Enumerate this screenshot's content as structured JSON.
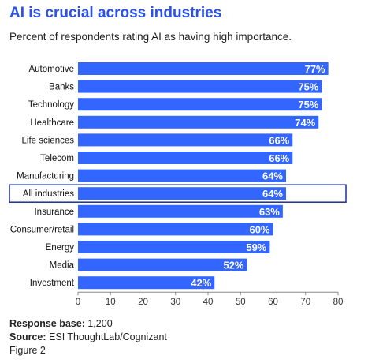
{
  "title": "AI is crucial across industries",
  "subtitle": "Percent of respondents rating AI as having high importance.",
  "colors": {
    "bar": "#3366ff",
    "title": "#2a52e8",
    "highlight_border": "#1a2e99",
    "axis": "#888888"
  },
  "chart_data": {
    "type": "bar",
    "orientation": "horizontal",
    "categories": [
      "Automotive",
      "Banks",
      "Technology",
      "Healthcare",
      "Life sciences",
      "Telecom",
      "Manufacturing",
      "All industries",
      "Insurance",
      "Consumer/retail",
      "Energy",
      "Media",
      "Investment"
    ],
    "values": [
      77,
      75,
      75,
      74,
      66,
      66,
      64,
      64,
      63,
      60,
      59,
      52,
      42
    ],
    "value_labels": [
      "77%",
      "75%",
      "75%",
      "74%",
      "66%",
      "66%",
      "64%",
      "64%",
      "63%",
      "60%",
      "59%",
      "52%",
      "42%"
    ],
    "highlighted_category": "All industries",
    "xlim": [
      0,
      80
    ],
    "xticks": [
      0,
      10,
      20,
      30,
      40,
      50,
      60,
      70,
      80
    ],
    "grid": false
  },
  "footer": {
    "response_base_label": "Response base:",
    "response_base_value": "1,200",
    "source_label": "Source:",
    "source_value": "ESI ThoughtLab/Cognizant",
    "figure_label": "Figure 2"
  }
}
